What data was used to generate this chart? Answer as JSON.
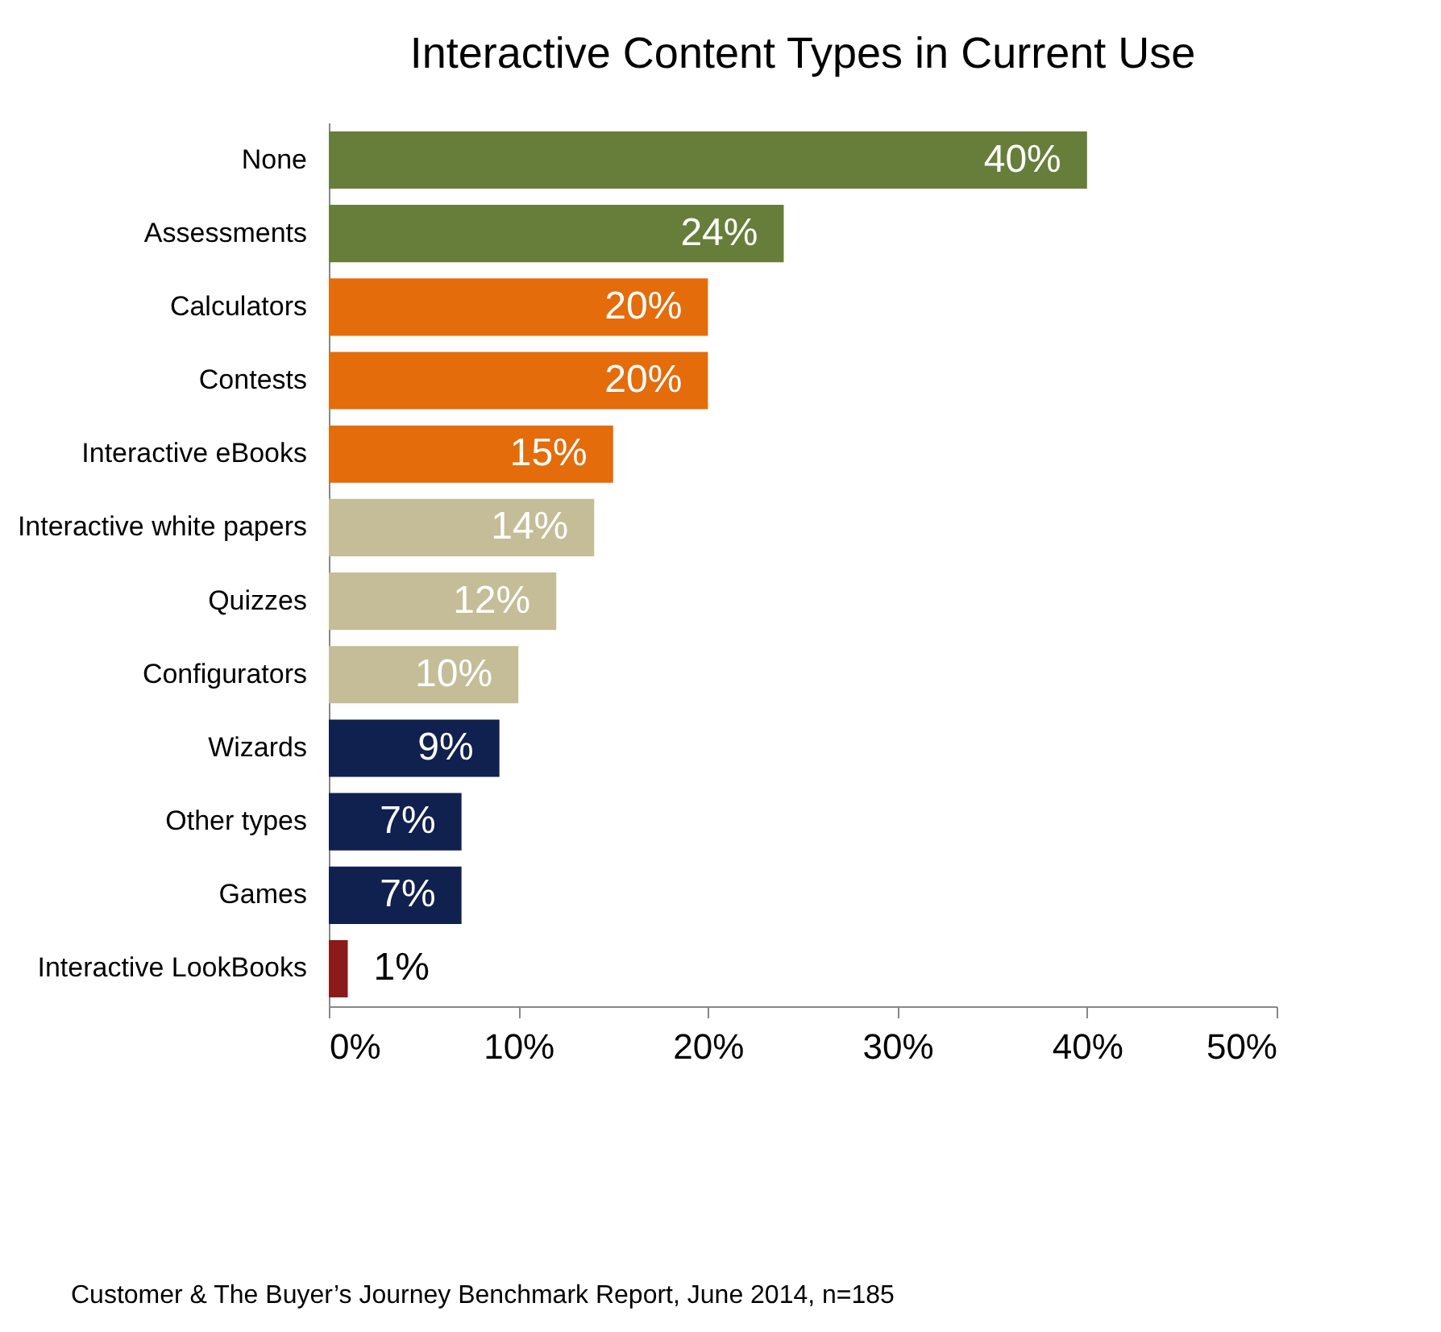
{
  "chart_data": {
    "type": "bar",
    "orientation": "horizontal",
    "title": "Interactive Content Types in Current Use",
    "categories": [
      "None",
      "Assessments",
      "Calculators",
      "Contests",
      "Interactive eBooks",
      "Interactive white papers",
      "Quizzes",
      "Configurators",
      "Wizards",
      "Other types",
      "Games",
      "Interactive LookBooks"
    ],
    "values": [
      40,
      24,
      20,
      20,
      15,
      14,
      12,
      10,
      9,
      7,
      7,
      1
    ],
    "value_labels": [
      "40%",
      "24%",
      "20%",
      "20%",
      "15%",
      "14%",
      "12%",
      "10%",
      "9%",
      "7%",
      "7%",
      "1%"
    ],
    "colors": [
      "#677e3a",
      "#677e3a",
      "#e46c0a",
      "#e46c0a",
      "#e46c0a",
      "#c4bd97",
      "#c4bd97",
      "#c4bd97",
      "#10204f",
      "#10204f",
      "#10204f",
      "#8b1a1a"
    ],
    "xlim": [
      0,
      50
    ],
    "xticks": [
      {
        "value": 0,
        "label": "0%"
      },
      {
        "value": 10,
        "label": "10%"
      },
      {
        "value": 20,
        "label": "20%"
      },
      {
        "value": 30,
        "label": "30%"
      },
      {
        "value": 40,
        "label": "40%"
      },
      {
        "value": 50,
        "label": "50%"
      }
    ],
    "legend": false,
    "annotations": [
      "Customer & The Buyer’s Journey Benchmark Report, June 2014, n=185"
    ]
  }
}
